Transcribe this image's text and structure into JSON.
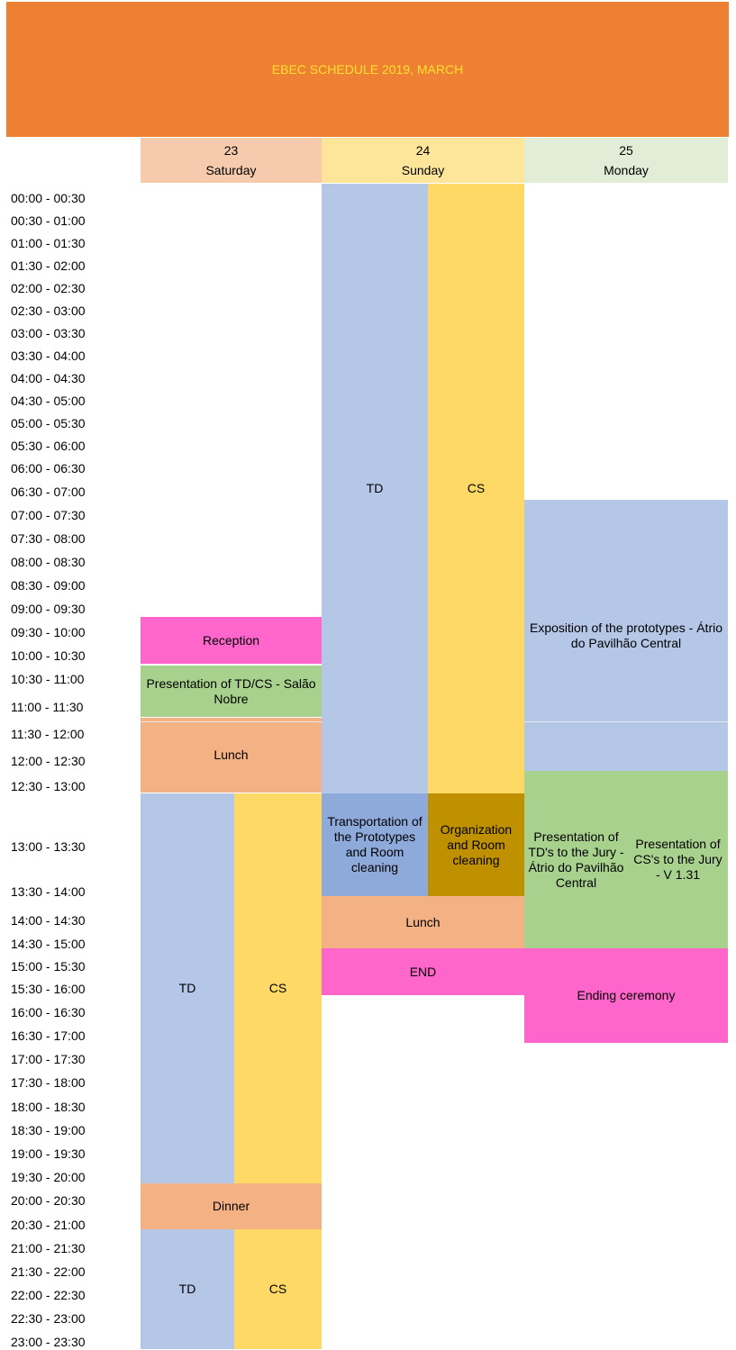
{
  "title": "EBEC SCHEDULE 2019, MARCH",
  "colors": {
    "title_bg": "#ee8033",
    "title_text": "#ffe12e",
    "saturday_head": "#f6cbad",
    "sunday_head": "#fde599",
    "monday_head": "#e1edd6",
    "td": "#b4c7e7",
    "cs": "#fed966",
    "pink": "#ff66cc",
    "green": "#a9d18e",
    "lunch": "#f4b183",
    "transport": "#8eaadb",
    "organization": "#bf9000"
  },
  "days": [
    {
      "date": "23",
      "name": "Saturday"
    },
    {
      "date": "24",
      "name": "Sunday"
    },
    {
      "date": "25",
      "name": "Monday"
    }
  ],
  "times": [
    "00:00 - 00:30",
    "00:30 - 01:00",
    "01:00 - 01:30",
    "01:30 - 02:00",
    "02:00 - 02:30",
    "02:30 - 03:00",
    "03:00 - 03:30",
    "03:30 - 04:00",
    "04:00 - 04:30",
    "04:30 - 05:00",
    "05:00 - 05:30",
    "05:30 - 06:00",
    "06:00 - 06:30",
    "06:30 - 07:00",
    "07:00 - 07:30",
    "07:30 - 08:00",
    "08:00 - 08:30",
    "08:30 - 09:00",
    "09:00 - 09:30",
    "09:30 - 10:00",
    "10:00 - 10:30",
    "10:30 - 11:00",
    "11:00 - 11:30",
    "11:30 - 12:00",
    "12:00 - 12:30",
    "12:30 - 13:00",
    "13:00 - 13:30",
    "13:30 - 14:00",
    "14:00 - 14:30",
    "14:30 - 15:00",
    "15:00 - 15:30",
    "15:30 - 16:00",
    "16:00 - 16:30",
    "16:30 - 17:00",
    "17:00 - 17:30",
    "17:30 - 18:00",
    "18:00 - 18:30",
    "18:30 - 19:00",
    "19:00 - 19:30",
    "19:30 - 20:00",
    "20:00 - 20:30",
    "20:30 - 21:00",
    "21:00 - 21:30",
    "21:30 - 22:00",
    "22:00 - 22:30",
    "22:30 - 23:00",
    "23:00 - 23:30"
  ],
  "events": {
    "sat_reception": "Reception",
    "sat_presentation": "Presentation of TD/CS - Salão Nobre",
    "sat_lunch": "Lunch",
    "sat_td_1": "TD",
    "sat_cs_1": "CS",
    "sat_dinner": "Dinner",
    "sat_td_2": "TD",
    "sat_cs_2": "CS",
    "sun_td": "TD",
    "sun_cs": "CS",
    "sun_transport": "Transportation of the Prototypes and Room cleaning",
    "sun_organization": "Organization and Room cleaning",
    "sun_lunch": "Lunch",
    "sun_end": "END",
    "mon_exposition": "Exposition of the prototypes - Átrio do Pavilhão Central",
    "mon_pres_td": "Presentation of TD's to the Jury - Átrio do Pavilhão Central",
    "mon_pres_cs": "Presentation of CS's to the Jury - V 1.31",
    "mon_ending": "Ending ceremony"
  }
}
